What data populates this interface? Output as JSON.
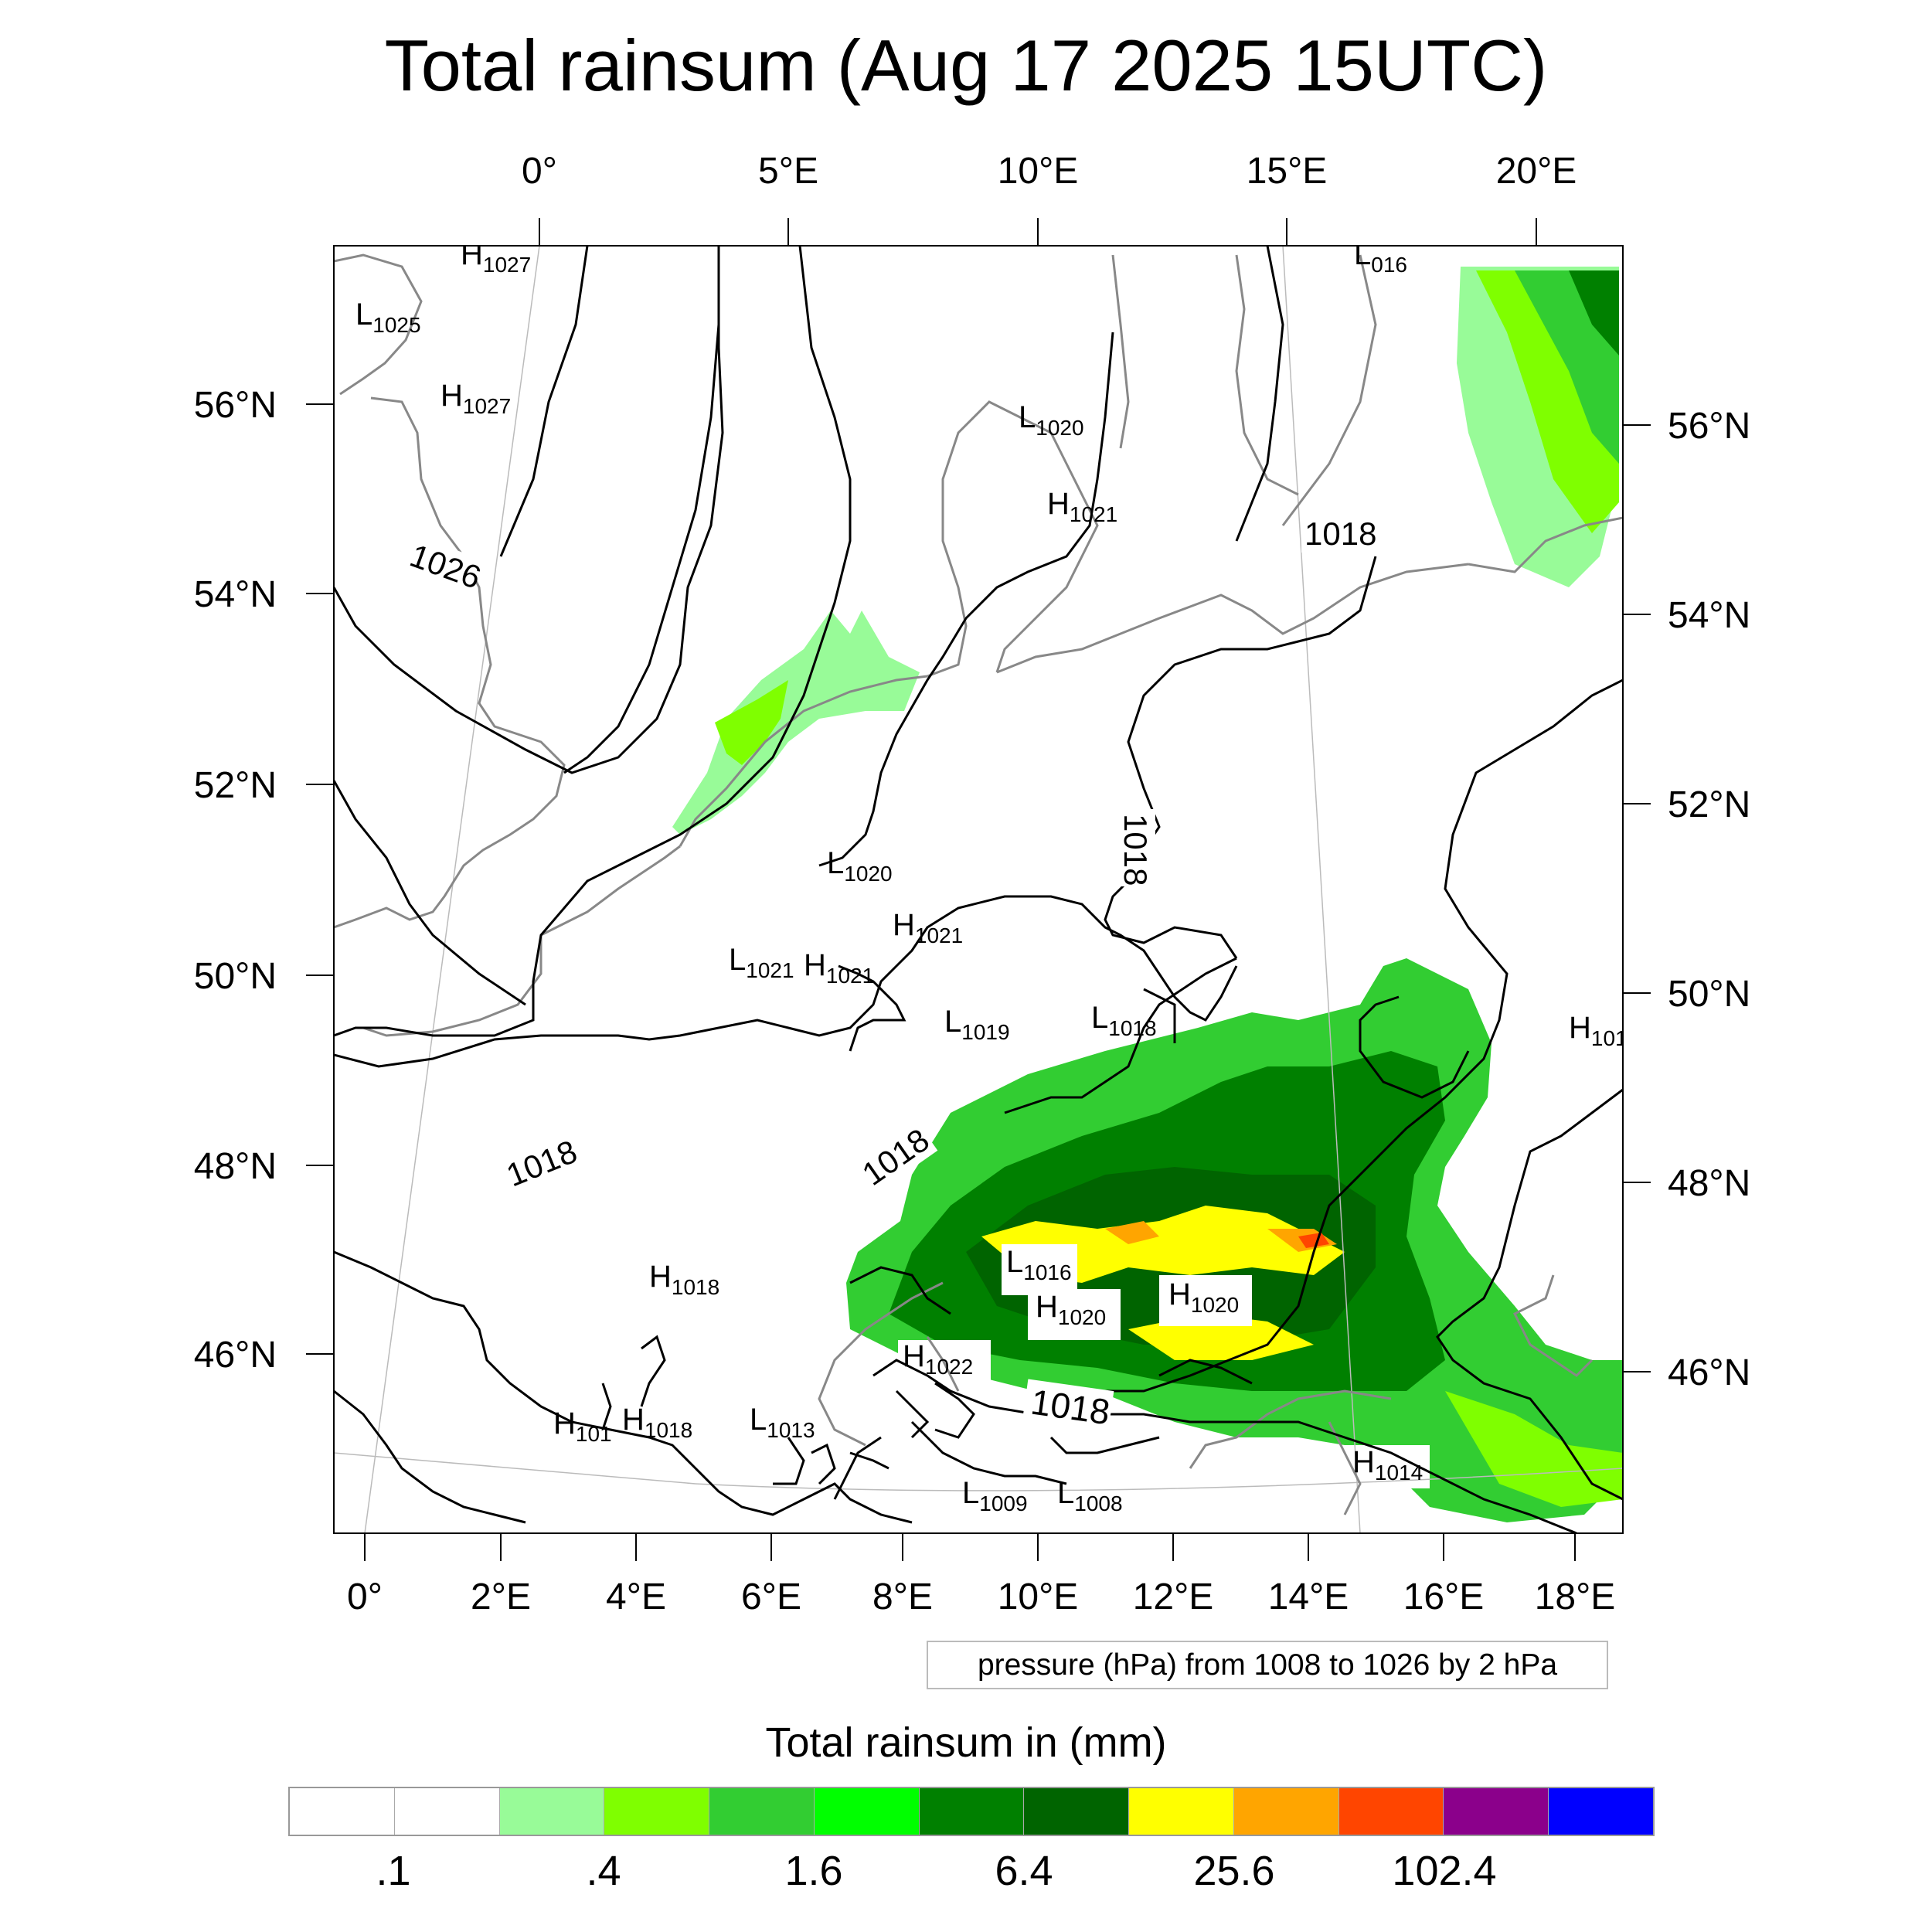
{
  "title": "Total rainsum (Aug 17 2025 15UTC)",
  "map": {
    "top_lon_labels": [
      "0°",
      "5°E",
      "10°E",
      "15°E",
      "20°E"
    ],
    "bottom_lon_labels": [
      "0°",
      "2°E",
      "4°E",
      "6°E",
      "8°E",
      "10°E",
      "12°E",
      "14°E",
      "16°E",
      "18°E"
    ],
    "left_lat_labels": [
      "56°N",
      "54°N",
      "52°N",
      "50°N",
      "48°N",
      "46°N"
    ],
    "right_lat_labels": [
      "56°N",
      "54°N",
      "52°N",
      "50°N",
      "48°N",
      "46°N"
    ],
    "isobar_labels": [
      "1026",
      "1018",
      "1018",
      "1018",
      "1018",
      "1018"
    ],
    "pressure_centers": [
      {
        "type": "H",
        "value": "1027"
      },
      {
        "type": "L",
        "value": "1025"
      },
      {
        "type": "H",
        "value": "1027"
      },
      {
        "type": "L",
        "value": "016"
      },
      {
        "type": "L",
        "value": "1020"
      },
      {
        "type": "L",
        "value": "1020"
      },
      {
        "type": "H",
        "value": "1021"
      },
      {
        "type": "H",
        "value": "1021"
      },
      {
        "type": "L",
        "value": "1021"
      },
      {
        "type": "H",
        "value": "1021"
      },
      {
        "type": "L",
        "value": "1019"
      },
      {
        "type": "L",
        "value": "1018"
      },
      {
        "type": "H",
        "value": "101"
      },
      {
        "type": "H",
        "value": "1018"
      },
      {
        "type": "L",
        "value": "1016"
      },
      {
        "type": "H",
        "value": "1020"
      },
      {
        "type": "H",
        "value": "1020"
      },
      {
        "type": "H",
        "value": "1022"
      },
      {
        "type": "H",
        "value": "101"
      },
      {
        "type": "H",
        "value": "1018"
      },
      {
        "type": "L",
        "value": "1013"
      },
      {
        "type": "L",
        "value": "1009"
      },
      {
        "type": "L",
        "value": "1008"
      },
      {
        "type": "H",
        "value": "1014"
      }
    ]
  },
  "pressure_note": "pressure (hPa) from 1008 to 1026 by 2 hPa",
  "colorbar": {
    "title": "Total rainsum in (mm)",
    "colors": [
      "#ffffff",
      "#ffffff",
      "#98fb98",
      "#7fff00",
      "#32cd32",
      "#00ff00",
      "#008000",
      "#006400",
      "#ffff00",
      "#ffa500",
      "#ff4500",
      "#8b008b",
      "#0000ff"
    ],
    "labels": [
      ".1",
      ".4",
      "1.6",
      "6.4",
      "25.6",
      "102.4"
    ]
  },
  "colors": {
    "coast": "#888888",
    "isobar": "#000000",
    "light_green": "#98fb98",
    "lime": "#7fff00",
    "green": "#32cd32",
    "bright_green": "#00ff00",
    "dark_green": "#008000",
    "darker_green": "#006400",
    "yellow": "#ffff00",
    "orange": "#ffa500",
    "red_orange": "#ff4500"
  }
}
